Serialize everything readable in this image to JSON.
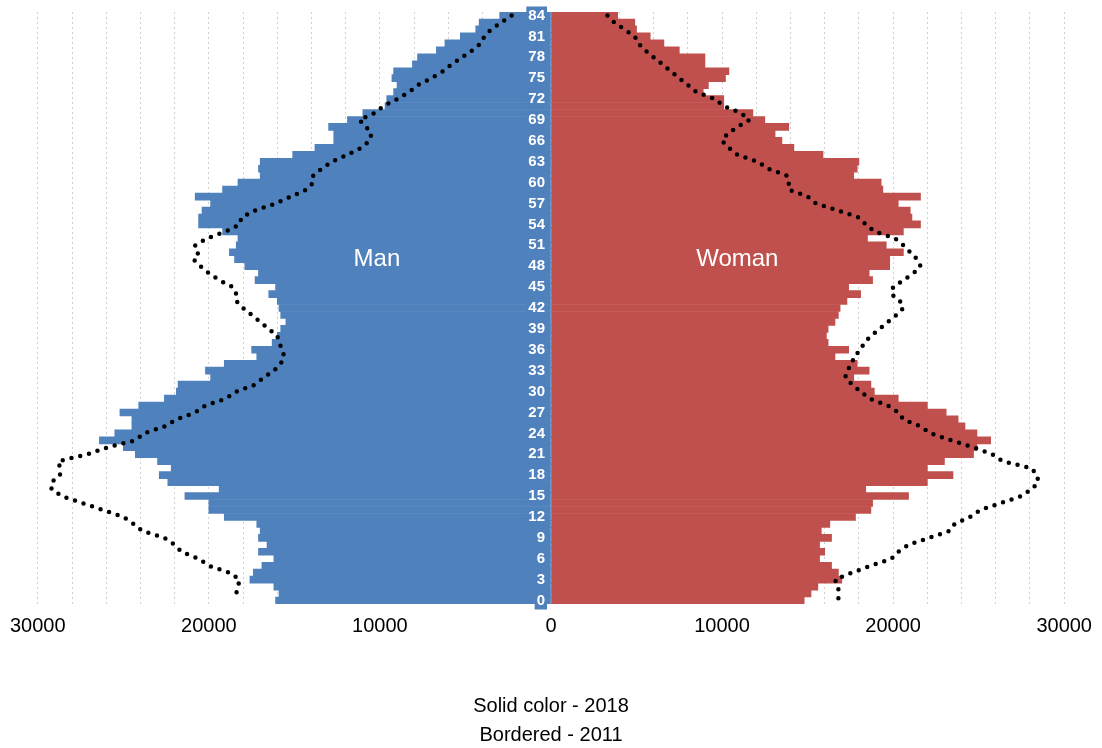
{
  "chart_data": {
    "type": "bar",
    "orientation": "horizontal",
    "stacked": true,
    "grid": "x",
    "legend": false,
    "categories": [
      "84",
      null,
      null,
      "81",
      null,
      null,
      "78",
      null,
      null,
      "75",
      null,
      null,
      "72",
      null,
      null,
      "69",
      null,
      null,
      "66",
      null,
      null,
      "63",
      null,
      null,
      "60",
      null,
      null,
      "57",
      null,
      null,
      "54",
      null,
      null,
      "51",
      null,
      null,
      "48",
      null,
      null,
      "45",
      null,
      null,
      "42",
      null,
      null,
      "39",
      null,
      null,
      "36",
      null,
      null,
      "33",
      null,
      null,
      "30",
      null,
      null,
      "27",
      null,
      null,
      "24",
      null,
      null,
      "21",
      null,
      null,
      "18",
      null,
      null,
      "15",
      null,
      null,
      "12",
      null,
      null,
      "9",
      null,
      null,
      "6",
      null,
      null,
      "3",
      null,
      null,
      "0"
    ],
    "xlim": [
      -30000,
      30000
    ],
    "xticks": [
      {
        "value": -30000,
        "label": "30000"
      },
      {
        "value": -28000,
        "label": null
      },
      {
        "value": -26000,
        "label": null
      },
      {
        "value": -24000,
        "label": null
      },
      {
        "value": -22000,
        "label": null
      },
      {
        "value": -20000,
        "label": "20000"
      },
      {
        "value": -18000,
        "label": null
      },
      {
        "value": -16000,
        "label": null
      },
      {
        "value": -14000,
        "label": null
      },
      {
        "value": -12000,
        "label": null
      },
      {
        "value": -10000,
        "label": "10000"
      },
      {
        "value": -8000,
        "label": null
      },
      {
        "value": -6000,
        "label": null
      },
      {
        "value": -4000,
        "label": null
      },
      0,
      {
        "value": 4000,
        "label": null
      },
      {
        "value": 6000,
        "label": null
      },
      {
        "value": 8000,
        "label": null
      },
      10000,
      {
        "value": 12000,
        "label": null
      },
      {
        "value": 14000,
        "label": null
      },
      {
        "value": 16000,
        "label": null
      },
      {
        "value": 18000,
        "label": null
      },
      20000,
      {
        "value": 22000,
        "label": null
      },
      {
        "value": 24000,
        "label": null
      },
      {
        "value": 26000,
        "label": null
      },
      {
        "value": 28000,
        "label": null
      },
      30000
    ],
    "series": [
      {
        "name": "Man",
        "color": "#4f81bd",
        "values": [
          -3000,
          -4200,
          -4400,
          -5300,
          -6200,
          -6700,
          -7800,
          -8100,
          -9200,
          -9300,
          -9000,
          -9200,
          -9600,
          -9700,
          -11000,
          -11900,
          -13000,
          -12700,
          -12700,
          -13800,
          -15100,
          -17000,
          -17100,
          -17000,
          -18300,
          -19200,
          -20800,
          -19900,
          -20400,
          -20600,
          -20600,
          -19200,
          -18300,
          -18400,
          -18800,
          -18500,
          -17900,
          -17100,
          -17300,
          -16100,
          -16500,
          -16000,
          -15900,
          -15800,
          -15500,
          -15800,
          -16000,
          -16300,
          -17500,
          -17200,
          -19100,
          -20200,
          -19900,
          -21800,
          -21900,
          -22600,
          -24100,
          -25200,
          -24500,
          -24500,
          -25500,
          -26400,
          -25000,
          -24300,
          -23000,
          -22200,
          -22900,
          -22400,
          -19400,
          -21400,
          -20000,
          -20000,
          -19100,
          -17200,
          -17000,
          -17100,
          -16600,
          -17100,
          -16200,
          -16900,
          -17400,
          -17600,
          -16200,
          -15900,
          -16100
        ]
      },
      {
        "name": "Woman",
        "color": "#c0504d",
        "values": [
          3900,
          4900,
          5000,
          5800,
          6600,
          7500,
          9000,
          9000,
          10400,
          10200,
          9200,
          8900,
          10100,
          10100,
          11800,
          12500,
          13900,
          13100,
          13500,
          14200,
          15900,
          18000,
          17900,
          17700,
          19300,
          19400,
          21600,
          20300,
          21000,
          21100,
          21600,
          20600,
          18500,
          19600,
          20600,
          19800,
          19800,
          18600,
          18800,
          17400,
          18100,
          17300,
          16900,
          16800,
          16600,
          16200,
          16100,
          16200,
          17400,
          16600,
          17900,
          18600,
          17700,
          18700,
          18900,
          20300,
          22000,
          23100,
          23800,
          24200,
          24900,
          25700,
          24900,
          24700,
          23000,
          22000,
          23500,
          22000,
          18400,
          20900,
          18800,
          18700,
          17800,
          16300,
          15800,
          16400,
          15700,
          16000,
          15700,
          16400,
          16800,
          17000,
          15600,
          15200,
          14800
        ]
      },
      {
        "type": "line",
        "color": "#000000",
        "line_style": "dotted",
        "marker": "none",
        "values": [
          -2300,
          -2900,
          -3500,
          -3900,
          -4100,
          -4600,
          -5200,
          -5800,
          -6300,
          -7000,
          -7800,
          -8300,
          -9000,
          -9800,
          -10300,
          -11200,
          -10800,
          -10500,
          -10600,
          -11100,
          -11900,
          -12800,
          -13400,
          -13900,
          -13900,
          -14300,
          -15200,
          -16100,
          -17300,
          -18100,
          -18200,
          -19000,
          -20100,
          -20800,
          -20600,
          -20900,
          -20500,
          -20000,
          -19400,
          -18600,
          -18400,
          -18400,
          -18000,
          -17500,
          -17000,
          -16500,
          -16000,
          -15900,
          -15700,
          -15600,
          -15800,
          -16200,
          -16800,
          -17300,
          -18400,
          -19000,
          -20200,
          -20800,
          -21900,
          -22600,
          -23800,
          -24300,
          -25900,
          -27100,
          -28800,
          -28700,
          -28700,
          -29200,
          -29200,
          -28600,
          -27400,
          -26200,
          -25000,
          -24400,
          -23900,
          -22600,
          -22000,
          -21600,
          -20600,
          -20000,
          -18800,
          -18200,
          -18300,
          -18400,
          -18400
        ]
      },
      {
        "type": "line",
        "color": "#000000",
        "line_style": "dotted",
        "marker": "none",
        "values": [
          3300,
          3700,
          4300,
          4900,
          5100,
          5500,
          6000,
          6500,
          7000,
          7500,
          8000,
          8500,
          9600,
          10100,
          11100,
          11600,
          10900,
          10300,
          10000,
          10400,
          10900,
          12100,
          12700,
          13800,
          13900,
          13900,
          15000,
          15500,
          16800,
          18000,
          18400,
          18900,
          20100,
          20600,
          21000,
          21400,
          21600,
          21200,
          20600,
          20000,
          19900,
          20400,
          20600,
          20200,
          19700,
          19200,
          18700,
          18300,
          18100,
          17700,
          17600,
          17300,
          17200,
          17600,
          18100,
          18600,
          19700,
          20300,
          20600,
          21600,
          22200,
          23400,
          24700,
          25800,
          26400,
          28100,
          28400,
          28500,
          28100,
          27500,
          26300,
          25100,
          24500,
          23600,
          23300,
          22100,
          20900,
          20300,
          19900,
          18700,
          17600,
          16600,
          16800,
          16800,
          16800
        ]
      }
    ],
    "annotations": [
      "Solid color - 2018",
      "Bordered - 2011"
    ]
  }
}
